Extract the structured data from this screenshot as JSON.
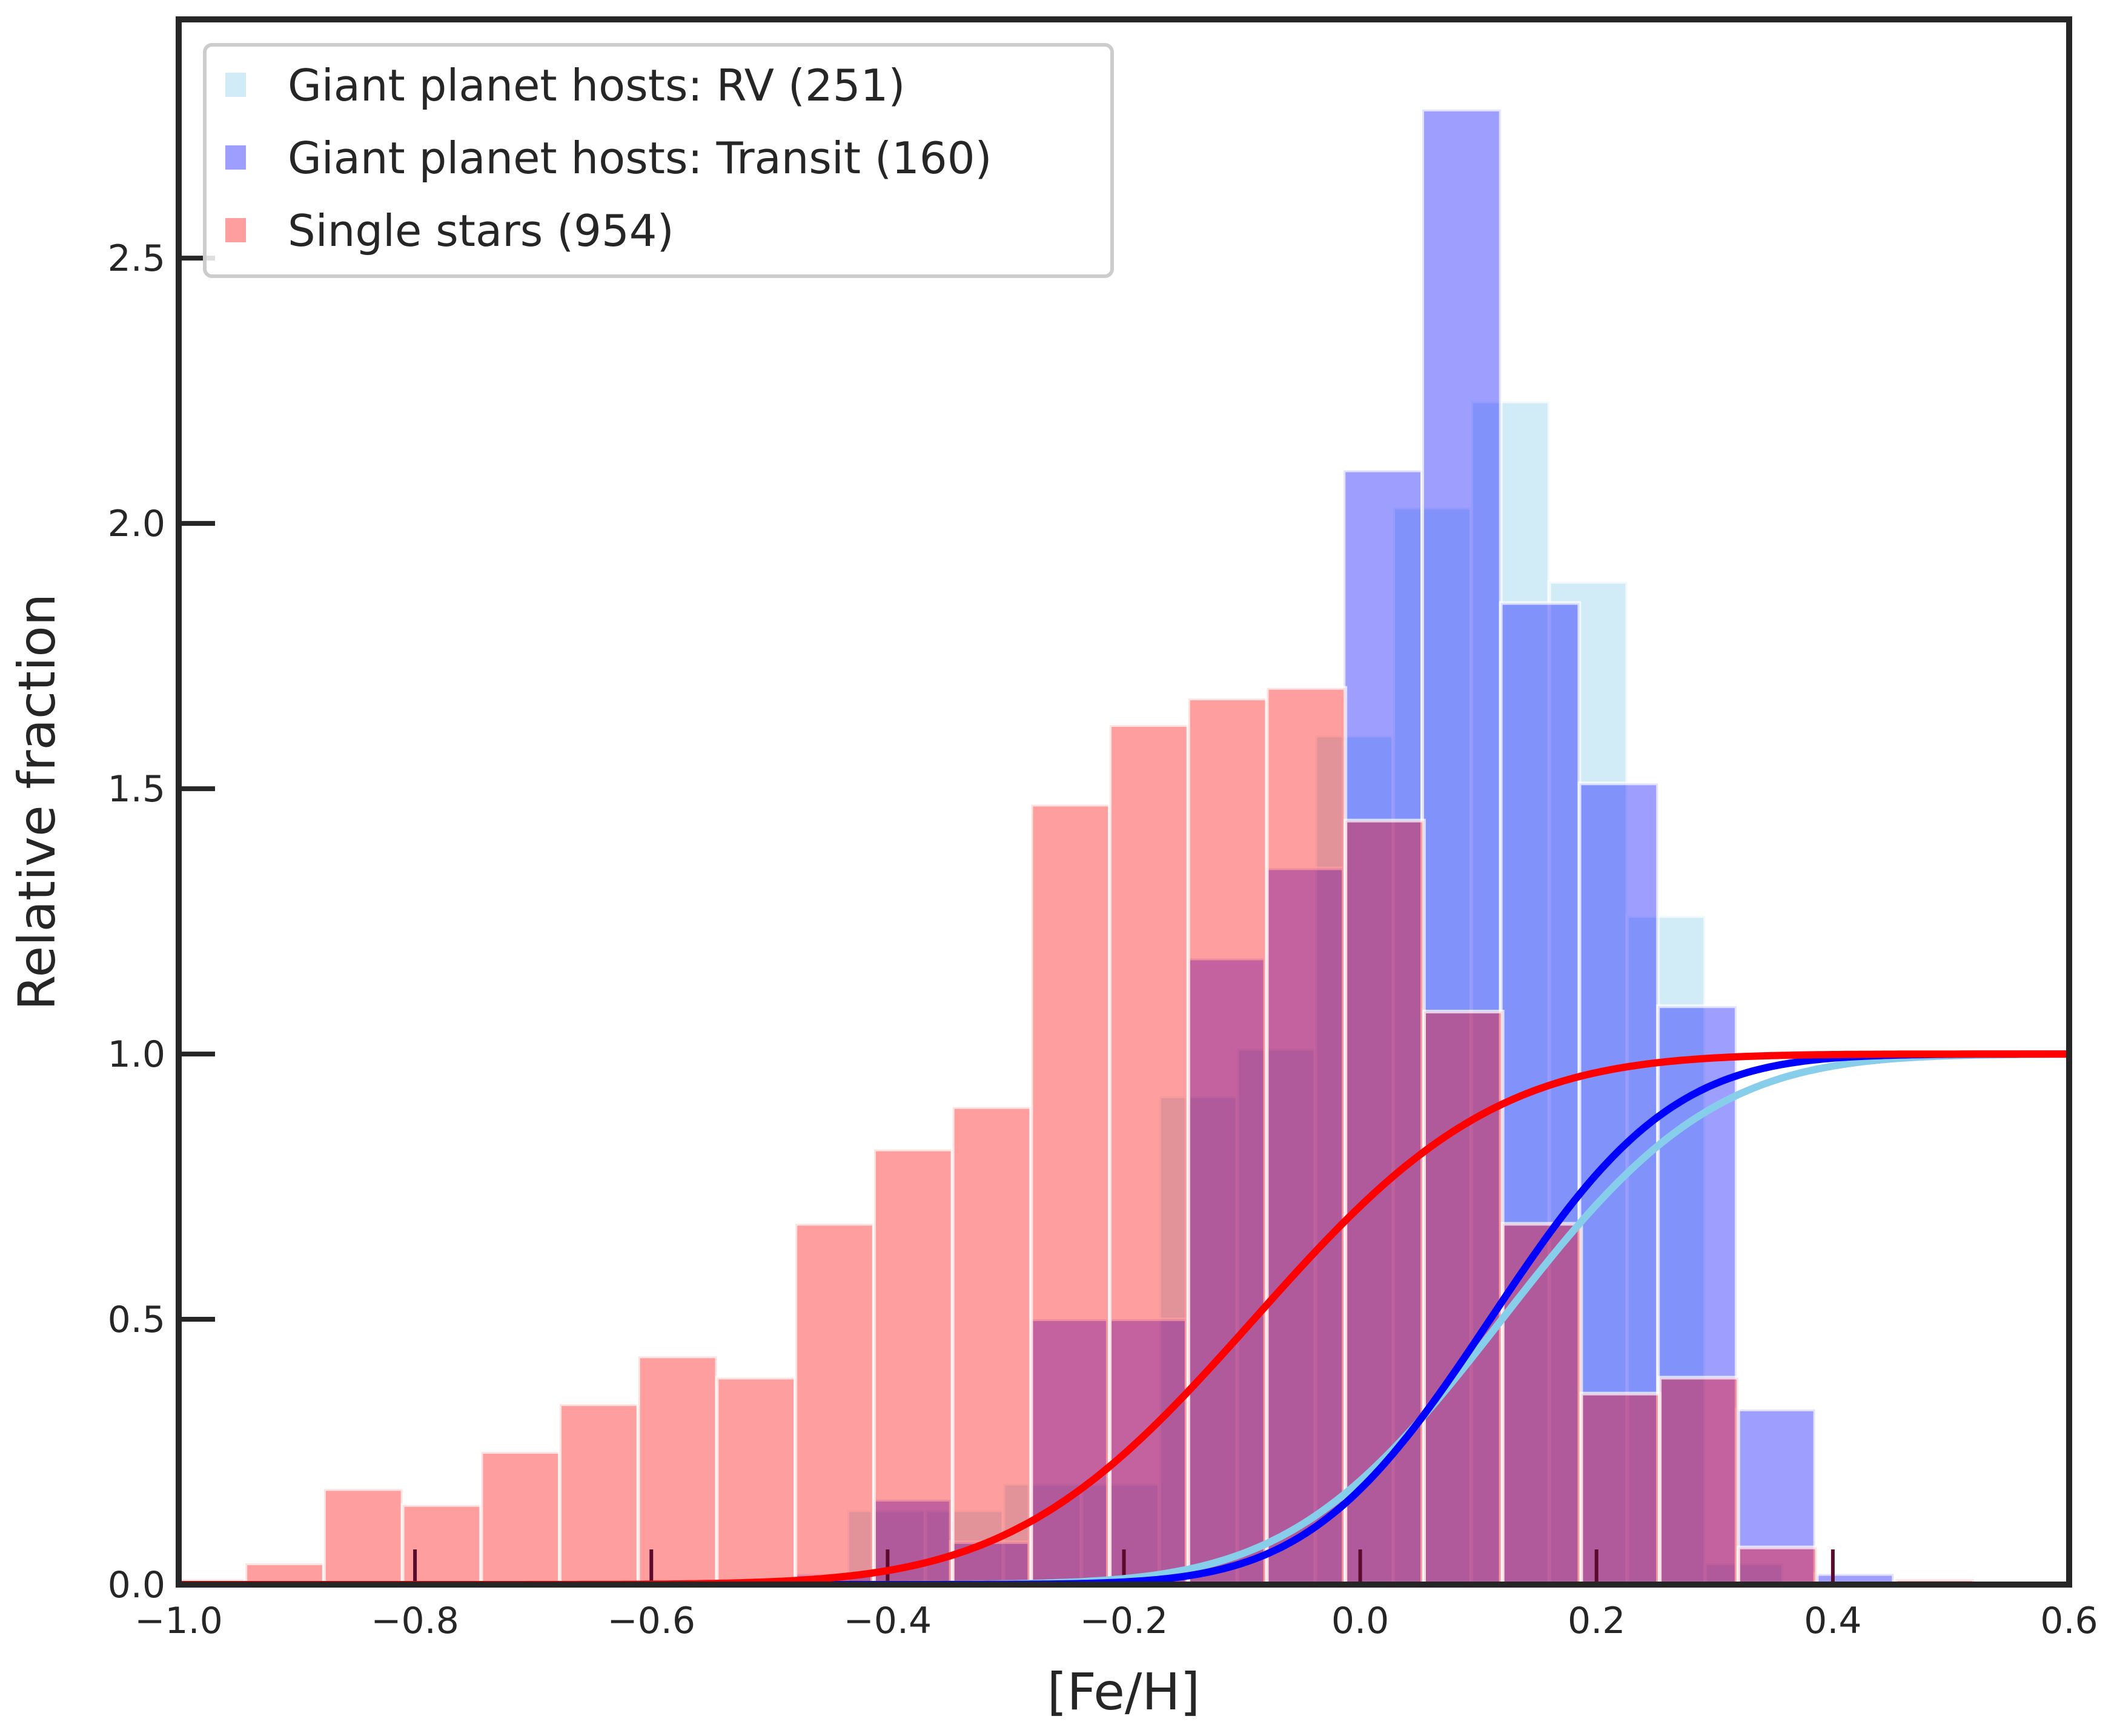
{
  "chart_data": {
    "type": "bar",
    "title": "",
    "xlabel": "[Fe/H]",
    "ylabel": "Relative fraction",
    "xlim": [
      -1.0,
      0.6
    ],
    "ylim": [
      0.0,
      2.95
    ],
    "x_ticks": [
      {
        "value": -1.0,
        "label": "−1.0"
      },
      {
        "value": -0.8,
        "label": "−0.8"
      },
      {
        "value": -0.6,
        "label": "−0.6"
      },
      {
        "value": -0.4,
        "label": "−0.4"
      },
      {
        "value": -0.2,
        "label": "−0.2"
      },
      {
        "value": 0.0,
        "label": "0.0"
      },
      {
        "value": 0.2,
        "label": "0.2"
      },
      {
        "value": 0.4,
        "label": "0.4"
      },
      {
        "value": 0.6,
        "label": "0.6"
      }
    ],
    "y_ticks": [
      {
        "value": 0.0,
        "label": "0.0"
      },
      {
        "value": 0.5,
        "label": "0.5"
      },
      {
        "value": 1.0,
        "label": "1.0"
      },
      {
        "value": 1.5,
        "label": "1.5"
      },
      {
        "value": 2.0,
        "label": "2.0"
      },
      {
        "value": 2.5,
        "label": "2.5"
      }
    ],
    "grid": false,
    "legend_position": "top-left",
    "histograms": [
      {
        "name": "Giant planet hosts: RV (251)",
        "color": "#87ceeb",
        "opacity": 0.38,
        "bin_start": -0.83,
        "bin_width": 0.066,
        "values": [
          0.0,
          0.0,
          0.0,
          0.0,
          0.0,
          0.0,
          0.14,
          0.14,
          0.19,
          0.19,
          0.92,
          1.01,
          1.6,
          2.03,
          2.23,
          1.89,
          1.26,
          0.04,
          0.0
        ]
      },
      {
        "name": "Giant planet hosts: Transit (160)",
        "color": "#0000ff",
        "opacity": 0.38,
        "bin_start": -0.812,
        "bin_width": 0.0665,
        "values": [
          0.0,
          0.0,
          0.0,
          0.0,
          0.0,
          0.02,
          0.16,
          0.08,
          0.5,
          0.5,
          1.18,
          1.35,
          2.1,
          2.78,
          1.85,
          1.51,
          1.09,
          0.33,
          0.02
        ]
      },
      {
        "name": "Single stars (954)",
        "color": "#ff0000",
        "opacity": 0.38,
        "bin_start": -1.01,
        "bin_width": 0.0665,
        "values": [
          0.01,
          0.04,
          0.18,
          0.15,
          0.25,
          0.34,
          0.43,
          0.39,
          0.68,
          0.82,
          0.9,
          1.47,
          1.62,
          1.67,
          1.69,
          1.44,
          1.08,
          0.68,
          0.36,
          0.39,
          0.07,
          0.0,
          0.01
        ]
      }
    ],
    "curves": [
      {
        "name": "Single stars CDF",
        "color": "#ff0000",
        "mu": -0.09,
        "sigma": 0.16
      },
      {
        "name": "Transit CDF",
        "color": "#0000ff",
        "mu": 0.11,
        "sigma": 0.12
      },
      {
        "name": "RV CDF",
        "color": "#87ceeb",
        "mu": 0.12,
        "sigma": 0.14
      }
    ],
    "rug_ticks": [
      -0.8,
      -0.6,
      -0.4,
      -0.2,
      0.0,
      0.2,
      0.4
    ],
    "legend": [
      {
        "label": "Giant planet hosts: RV (251)",
        "color": "#87ceeb"
      },
      {
        "label": "Giant planet hosts: Transit (160)",
        "color": "#0000ff"
      },
      {
        "label": "Single stars (954)",
        "color": "#ff0000"
      }
    ]
  }
}
